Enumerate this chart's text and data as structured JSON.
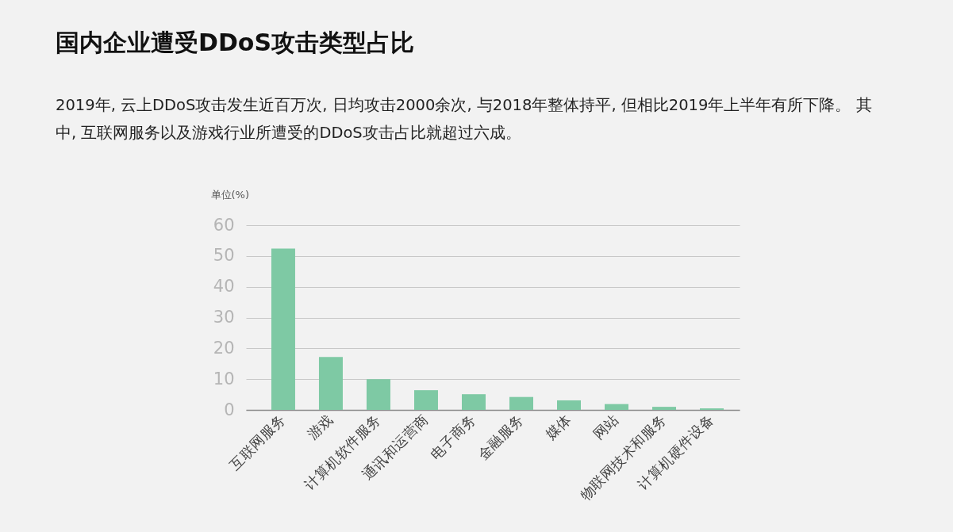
{
  "chart_data": {
    "type": "bar",
    "title": "国内企业遭受DDoS攻击类型占比",
    "subtitle": "2019年, 云上DDoS攻击发生近百万次, 日均攻击2000余次, 与2018年整体持平, 但相比2019年上半年有所下降。 其中, 互联网服务以及游戏行业所遭受的DDoS攻击占比就超过六成。",
    "ylabel": "单位(%)",
    "categories": [
      "互联网服务",
      "游戏",
      "计算机软件服务",
      "通讯和运营商",
      "电子商务",
      "金融服务",
      "媒体",
      "网站",
      "物联网技术和服务",
      "计算机硬件设备"
    ],
    "values": [
      52.4,
      17.2,
      10.0,
      6.4,
      5.1,
      4.2,
      3.1,
      1.9,
      1.0,
      0.5
    ],
    "color": "#7ec9a4",
    "ylim": [
      0,
      60
    ],
    "yticks": [
      0,
      10,
      20,
      30,
      40,
      50,
      60
    ],
    "grid": "y"
  }
}
